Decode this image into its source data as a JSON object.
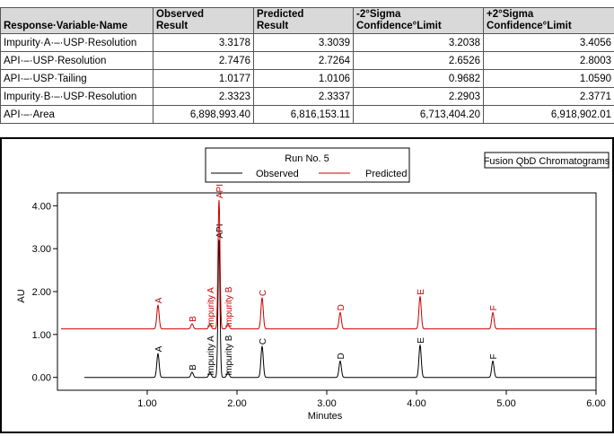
{
  "table": {
    "headers": [
      "Response·Variable·Name",
      "Observed Result",
      "Predicted Result",
      "-2°Sigma Confidence°Limit",
      "+2°Sigma Confidence°Limit"
    ],
    "header_lines": [
      [
        "Response·Variable·Name"
      ],
      [
        "Observed",
        "Result"
      ],
      [
        "Predicted",
        "Result"
      ],
      [
        "-2°Sigma",
        "Confidence°Limit"
      ],
      [
        "+2°Sigma",
        "Confidence°Limit"
      ]
    ],
    "rows": [
      [
        "Impurity·A·–·USP·Resolution",
        "3.3178",
        "3.3039",
        "3.2038",
        "3.4056"
      ],
      [
        "API·–·USP·Resolution",
        "2.7476",
        "2.7264",
        "2.6526",
        "2.8003"
      ],
      [
        "API·–·USP·Tailing",
        "1.0177",
        "1.0106",
        "0.9682",
        "1.0590"
      ],
      [
        "Impurity·B·–·USP·Resolution",
        "2.3323",
        "2.3337",
        "2.2903",
        "2.3771"
      ],
      [
        "API·–·Area",
        "6,898,993.40",
        "6,816,153.11",
        "6,713,404.20",
        "6,918,902.01"
      ]
    ]
  },
  "chart_data": {
    "type": "line",
    "title": "Run No. 5",
    "subtitle_box": "Fusion QbD Chromatograms",
    "xlabel": "Minutes",
    "ylabel": "AU",
    "xlim": [
      0,
      6
    ],
    "ylim": [
      -0.3,
      4.3
    ],
    "x_ticks": [
      1.0,
      2.0,
      3.0,
      4.0,
      5.0,
      6.0
    ],
    "x_tick_labels": [
      "1.00",
      "2.00",
      "3.00",
      "4.00",
      "5.00",
      "6.00"
    ],
    "y_ticks": [
      0.0,
      1.0,
      2.0,
      3.0,
      4.0
    ],
    "y_tick_labels": [
      "0.00",
      "1.00",
      "2.00",
      "3.00",
      "4.00"
    ],
    "legend": "top-center",
    "colors": {
      "observed": "#000000",
      "predicted": "#cc0000"
    },
    "series": [
      {
        "name": "Observed",
        "color": "#000000",
        "baseline": 0.0,
        "peaks": [
          {
            "label": "A",
            "x": 1.12,
            "height": 0.55
          },
          {
            "label": "B",
            "x": 1.5,
            "height": 0.12
          },
          {
            "label": "Impurity A",
            "x": 1.7,
            "height": 0.12
          },
          {
            "label": "API",
            "x": 1.8,
            "height": 3.2
          },
          {
            "label": "Impurity B",
            "x": 1.9,
            "height": 0.12
          },
          {
            "label": "C",
            "x": 2.28,
            "height": 0.72
          },
          {
            "label": "D",
            "x": 3.15,
            "height": 0.38
          },
          {
            "label": "E",
            "x": 4.04,
            "height": 0.75
          },
          {
            "label": "F",
            "x": 4.85,
            "height": 0.38
          }
        ]
      },
      {
        "name": "Predicted",
        "color": "#cc0000",
        "baseline": 1.13,
        "peaks": [
          {
            "label": "A",
            "x": 1.12,
            "height": 0.55
          },
          {
            "label": "B",
            "x": 1.5,
            "height": 0.12
          },
          {
            "label": "Impurity A",
            "x": 1.7,
            "height": 0.12
          },
          {
            "label": "API",
            "x": 1.8,
            "height": 3.0
          },
          {
            "label": "Impurity B",
            "x": 1.9,
            "height": 0.12
          },
          {
            "label": "C",
            "x": 2.28,
            "height": 0.72
          },
          {
            "label": "D",
            "x": 3.15,
            "height": 0.38
          },
          {
            "label": "E",
            "x": 4.04,
            "height": 0.75
          },
          {
            "label": "F",
            "x": 4.85,
            "height": 0.38
          }
        ]
      }
    ]
  }
}
